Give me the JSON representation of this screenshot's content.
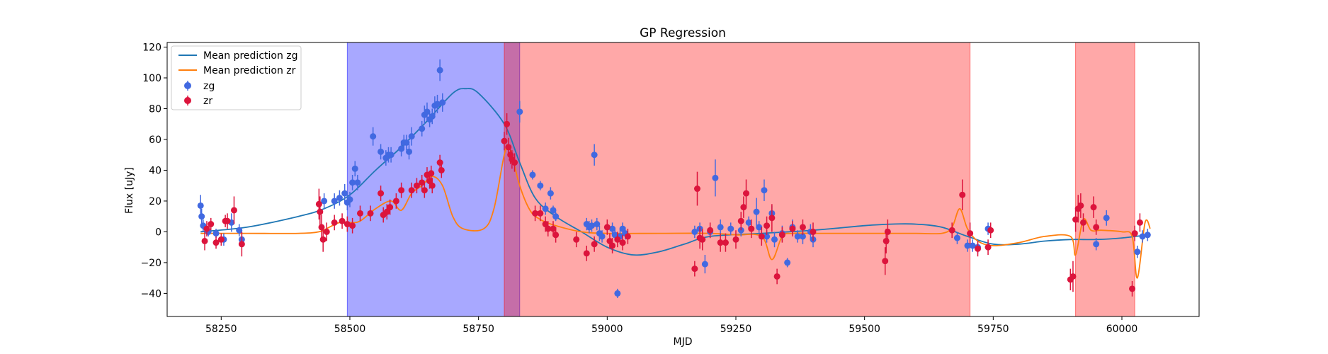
{
  "chart_data": {
    "type": "scatter",
    "title": "GP Regression",
    "xlabel": "MJD",
    "ylabel": "Flux [uJy]",
    "xlim": [
      58145,
      60150
    ],
    "ylim": [
      -55,
      123
    ],
    "x_ticks": [
      58250,
      58500,
      58750,
      59000,
      59250,
      59500,
      59750,
      60000
    ],
    "y_ticks": [
      -40,
      -20,
      0,
      20,
      40,
      60,
      80,
      100,
      120
    ],
    "legend_position": "top-left",
    "legend": [
      "Mean prediction zg",
      "Mean prediction zr",
      "zg",
      "zr"
    ],
    "colors": {
      "zg": "#4169e1",
      "zr": "#dc143c",
      "mean_zg": "#1f77b4",
      "mean_zr": "#ff7f0e",
      "band_zg": "#0000ff",
      "band_zr": "#ff0000"
    },
    "shaded_regions": [
      {
        "band": "zg",
        "x_start": 58495,
        "x_end": 58830
      },
      {
        "band": "zr",
        "x_start": 58800,
        "x_end": 59705
      },
      {
        "band": "zr",
        "x_start": 59910,
        "x_end": 60025
      }
    ],
    "series": [
      {
        "name": "Mean prediction zg",
        "kind": "line",
        "x": [
          58210,
          58300,
          58400,
          58450,
          58500,
          58550,
          58600,
          58650,
          58700,
          58725,
          58750,
          58800,
          58830,
          58860,
          58900,
          58950,
          59000,
          59050,
          59100,
          59150,
          59200,
          59300,
          59400,
          59500,
          59550,
          59600,
          59650,
          59700,
          59750,
          59800,
          59850,
          59900,
          59950,
          60000,
          60050
        ],
        "y": [
          0,
          3,
          10,
          15,
          24,
          40,
          55,
          72,
          90,
          93,
          90,
          70,
          45,
          22,
          10,
          0,
          -10,
          -15,
          -13,
          -8,
          -3,
          -1,
          1,
          4,
          5,
          5,
          3,
          -3,
          -8,
          -8,
          -6,
          -5,
          -5,
          -4,
          -2
        ]
      },
      {
        "name": "Mean prediction zr",
        "kind": "line",
        "x": [
          58210,
          58300,
          58400,
          58440,
          58460,
          58480,
          58500,
          58520,
          58550,
          58580,
          58600,
          58620,
          58640,
          58660,
          58680,
          58700,
          58720,
          58760,
          58780,
          58800,
          58810,
          58830,
          58850,
          58870,
          58900,
          58950,
          59000,
          59100,
          59200,
          59250,
          59300,
          59320,
          59340,
          59360,
          59400,
          59500,
          59600,
          59650,
          59670,
          59685,
          59700,
          59720,
          59750,
          59800,
          59850,
          59900,
          59910,
          59925,
          59940,
          59960,
          60000,
          60020,
          60030,
          60045,
          60055
        ],
        "y": [
          -1,
          -1,
          -1,
          0,
          3,
          6,
          6,
          7,
          15,
          20,
          14,
          25,
          30,
          36,
          30,
          10,
          2,
          2,
          15,
          50,
          55,
          30,
          14,
          8,
          4,
          0,
          -1,
          -1,
          -1,
          -2,
          -3,
          -18,
          -3,
          -1,
          -1,
          -1,
          -1,
          -1,
          3,
          15,
          2,
          -6,
          -9,
          -7,
          -3,
          -3,
          -15,
          8,
          1,
          1,
          0,
          -3,
          -30,
          6,
          2
        ]
      },
      {
        "name": "zg",
        "kind": "points",
        "x": [
          58210,
          58212,
          58215,
          58225,
          58240,
          58255,
          58270,
          58285,
          58290,
          58450,
          58470,
          58480,
          58490,
          58495,
          58500,
          58505,
          58510,
          58515,
          58545,
          58560,
          58570,
          58575,
          58580,
          58600,
          58605,
          58610,
          58615,
          58620,
          58640,
          58645,
          58650,
          58655,
          58660,
          58665,
          58670,
          58675,
          58680,
          58830,
          58855,
          58870,
          58880,
          58890,
          58895,
          58900,
          58960,
          58965,
          58970,
          58975,
          58980,
          58985,
          58990,
          59010,
          59015,
          59020,
          59025,
          59030,
          59035,
          59170,
          59180,
          59190,
          59200,
          59210,
          59220,
          59240,
          59260,
          59275,
          59290,
          59295,
          59305,
          59310,
          59320,
          59325,
          59340,
          59350,
          59360,
          59370,
          59380,
          59395,
          59400,
          59680,
          59700,
          59710,
          59720,
          59740,
          59950,
          59970,
          60030,
          60040,
          60050
        ],
        "y": [
          17,
          10,
          4,
          0,
          -1,
          -5,
          6,
          1,
          -5,
          20,
          20,
          22,
          25,
          19,
          21,
          32,
          41,
          32,
          62,
          52,
          48,
          50,
          50,
          54,
          58,
          58,
          52,
          62,
          67,
          76,
          78,
          73,
          75,
          82,
          83,
          105,
          84,
          78,
          37,
          30,
          15,
          25,
          14,
          10,
          5,
          3,
          4,
          50,
          5,
          -1,
          -3,
          2,
          -2,
          -40,
          -3,
          2,
          -1,
          0,
          2,
          -21,
          0,
          35,
          3,
          2,
          1,
          6,
          13,
          3,
          27,
          -3,
          12,
          -5,
          -1,
          -20,
          3,
          -3,
          -3,
          0,
          -5,
          -4,
          -9,
          -9,
          -10,
          2,
          -8,
          9,
          -13,
          -3,
          -2
        ],
        "err": [
          7,
          5,
          4,
          3,
          3,
          4,
          6,
          4,
          5,
          5,
          5,
          5,
          6,
          5,
          5,
          5,
          5,
          5,
          6,
          5,
          5,
          5,
          5,
          5,
          5,
          5,
          5,
          6,
          5,
          6,
          6,
          5,
          5,
          6,
          6,
          7,
          6,
          7,
          3,
          3,
          4,
          4,
          3,
          3,
          4,
          4,
          4,
          7,
          4,
          5,
          4,
          4,
          4,
          3,
          5,
          4,
          4,
          4,
          4,
          6,
          4,
          12,
          5,
          4,
          4,
          4,
          9,
          4,
          7,
          4,
          5,
          5,
          5,
          3,
          5,
          4,
          5,
          5,
          5,
          4,
          4,
          4,
          4,
          4,
          4,
          5,
          4,
          4,
          4
        ]
      },
      {
        "name": "zr",
        "kind": "points",
        "x": [
          58218,
          58222,
          58230,
          58240,
          58250,
          58258,
          58262,
          58275,
          58290,
          58440,
          58442,
          58445,
          58448,
          58455,
          58470,
          58485,
          58495,
          58505,
          58520,
          58540,
          58560,
          58565,
          58572,
          58578,
          58590,
          58600,
          58620,
          58630,
          58640,
          58645,
          58650,
          58655,
          58658,
          58660,
          58675,
          58678,
          58800,
          58805,
          58808,
          58812,
          58815,
          58820,
          58860,
          58870,
          58880,
          58885,
          58895,
          58900,
          58940,
          58960,
          58975,
          59000,
          59005,
          59010,
          59020,
          59030,
          59040,
          59170,
          59175,
          59180,
          59185,
          59200,
          59220,
          59230,
          59250,
          59260,
          59265,
          59270,
          59280,
          59300,
          59310,
          59320,
          59330,
          59340,
          59360,
          59380,
          59400,
          59540,
          59542,
          59545,
          59670,
          59690,
          59705,
          59720,
          59740,
          59745,
          59900,
          59905,
          59910,
          59915,
          59920,
          59925,
          59945,
          59950,
          60020,
          60025,
          60035
        ],
        "y": [
          -6,
          2,
          5,
          -7,
          -5,
          7,
          7,
          14,
          -8,
          18,
          13,
          3,
          -5,
          0,
          6,
          7,
          5,
          4,
          12,
          12,
          25,
          11,
          13,
          16,
          20,
          27,
          27,
          30,
          32,
          27,
          37,
          33,
          38,
          30,
          45,
          40,
          59,
          70,
          55,
          50,
          47,
          45,
          12,
          12,
          5,
          2,
          2,
          -2,
          -5,
          -14,
          -8,
          3,
          -6,
          -9,
          -5,
          -7,
          -3,
          -24,
          28,
          -4,
          -5,
          1,
          -7,
          -7,
          -5,
          7,
          16,
          25,
          2,
          -3,
          4,
          9,
          -29,
          -2,
          2,
          3,
          0,
          -19,
          -6,
          0,
          1,
          24,
          -1,
          -11,
          -10,
          1,
          -31,
          -29,
          8,
          15,
          17,
          6,
          16,
          3,
          -37,
          -1,
          6
        ],
        "err": [
          6,
          5,
          4,
          4,
          4,
          4,
          5,
          9,
          8,
          10,
          10,
          8,
          8,
          6,
          5,
          5,
          5,
          5,
          5,
          5,
          5,
          5,
          5,
          5,
          5,
          5,
          5,
          5,
          5,
          5,
          5,
          5,
          5,
          5,
          5,
          5,
          6,
          7,
          6,
          6,
          6,
          6,
          5,
          5,
          5,
          5,
          5,
          5,
          5,
          5,
          5,
          5,
          5,
          5,
          5,
          5,
          5,
          5,
          11,
          7,
          7,
          5,
          6,
          6,
          6,
          6,
          7,
          9,
          6,
          6,
          6,
          9,
          5,
          5,
          5,
          5,
          6,
          9,
          8,
          8,
          5,
          10,
          7,
          5,
          5,
          5,
          7,
          10,
          8,
          9,
          8,
          6,
          7,
          5,
          5,
          5,
          6
        ]
      }
    ]
  }
}
